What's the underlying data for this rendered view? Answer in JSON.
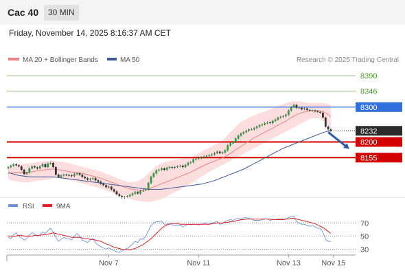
{
  "header": {
    "instrument": "Cac 40",
    "timeframe": "30 MIN",
    "datetime": "Friday, November 14, 2025 8:16:37 AM CET"
  },
  "legend": {
    "ma20": "MA 20 + Bollinger Bands",
    "ma50": "MA 50",
    "credit": "Research © 2025 Trading Central",
    "rsi": "RSI",
    "rsi9": "9MA"
  },
  "colors": {
    "candle": "#2e9e3e",
    "ma20": "#f08080",
    "band": "#fbd3d3",
    "ma50": "#3d5a98",
    "resistance": "#90c080",
    "pivot": "#2f6fde",
    "support": "#d40000",
    "arrow": "#2a5aa8",
    "rsi": "#6f8fe0",
    "rsi9": "#e02020"
  },
  "chart_data": [
    {
      "type": "line",
      "name": "price",
      "ylim": [
        8055,
        8410
      ],
      "x_ticks": [
        {
          "label": "Nov 7",
          "index": 38
        },
        {
          "label": "Nov 11",
          "index": 72
        },
        {
          "label": "Nov 13",
          "index": 106
        },
        {
          "label": "Nov 15",
          "index": 123
        }
      ],
      "levels": [
        {
          "label": "8390",
          "value": 8390,
          "style": "resistance"
        },
        {
          "label": "8346",
          "value": 8346,
          "style": "resistance"
        },
        {
          "label": "8300",
          "value": 8300,
          "style": "pivot"
        },
        {
          "label": "8232",
          "value": 8232,
          "style": "last"
        },
        {
          "label": "8200",
          "value": 8200,
          "style": "support"
        },
        {
          "label": "8155",
          "value": 8155,
          "style": "support"
        }
      ],
      "arrow": {
        "from_index": 121,
        "from": 8228,
        "to_index": 129,
        "to": 8180
      },
      "close": [
        8128,
        8132,
        8136,
        8133,
        8130,
        8120,
        8108,
        8112,
        8124,
        8130,
        8127,
        8124,
        8130,
        8136,
        8128,
        8138,
        8140,
        8128,
        8106,
        8100,
        8104,
        8106,
        8105,
        8104,
        8102,
        8108,
        8110,
        8106,
        8100,
        8096,
        8092,
        8094,
        8096,
        8090,
        8086,
        8080,
        8076,
        8070,
        8072,
        8064,
        8058,
        8050,
        8045,
        8040,
        8042,
        8044,
        8048,
        8052,
        8056,
        8052,
        8060,
        8062,
        8064,
        8082,
        8100,
        8110,
        8118,
        8120,
        8124,
        8120,
        8126,
        8128,
        8126,
        8128,
        8130,
        8132,
        8128,
        8134,
        8140,
        8142,
        8150,
        8152,
        8154,
        8156,
        8158,
        8160,
        8162,
        8164,
        8168,
        8172,
        8168,
        8170,
        8176,
        8190,
        8196,
        8200,
        8210,
        8218,
        8224,
        8228,
        8232,
        8236,
        8236,
        8240,
        8244,
        8248,
        8250,
        8254,
        8256,
        8254,
        8260,
        8264,
        8270,
        8272,
        8274,
        8278,
        8290,
        8300,
        8306,
        8298,
        8298,
        8294,
        8296,
        8292,
        8290,
        8290,
        8288,
        8286,
        8284,
        8270,
        8244,
        8236,
        8232
      ],
      "ma20": [
        8110,
        8111,
        8112,
        8113,
        8113,
        8113,
        8113,
        8113,
        8114,
        8115,
        8116,
        8117,
        8118,
        8119,
        8120,
        8121,
        8122,
        8122,
        8121,
        8120,
        8119,
        8118,
        8117,
        8115,
        8114,
        8113,
        8112,
        8111,
        8110,
        8108,
        8106,
        8104,
        8102,
        8100,
        8098,
        8096,
        8093,
        8090,
        8088,
        8085,
        8082,
        8079,
        8076,
        8073,
        8070,
        8068,
        8066,
        8064,
        8063,
        8062,
        8062,
        8062,
        8063,
        8065,
        8068,
        8071,
        8074,
        8077,
        8080,
        8083,
        8086,
        8089,
        8092,
        8095,
        8098,
        8101,
        8104,
        8107,
        8110,
        8113,
        8117,
        8121,
        8125,
        8129,
        8133,
        8136,
        8139,
        8142,
        8145,
        8148,
        8151,
        8154,
        8158,
        8162,
        8167,
        8172,
        8177,
        8182,
        8187,
        8192,
        8197,
        8202,
        8207,
        8212,
        8216,
        8220,
        8224,
        8228,
        8232,
        8236,
        8240,
        8244,
        8248,
        8252,
        8256,
        8260,
        8265,
        8270,
        8274,
        8278,
        8281,
        8284,
        8286,
        8288,
        8289,
        8290,
        8290,
        8290,
        8289,
        8287,
        8283,
        8278,
        8272
      ],
      "band_upper": [
        8128,
        8130,
        8132,
        8134,
        8135,
        8136,
        8137,
        8138,
        8139,
        8140,
        8141,
        8142,
        8143,
        8144,
        8145,
        8146,
        8146,
        8146,
        8145,
        8144,
        8143,
        8142,
        8141,
        8139,
        8137,
        8135,
        8133,
        8131,
        8129,
        8127,
        8125,
        8123,
        8121,
        8119,
        8117,
        8115,
        8112,
        8109,
        8106,
        8103,
        8100,
        8097,
        8094,
        8091,
        8088,
        8086,
        8085,
        8085,
        8086,
        8088,
        8092,
        8097,
        8103,
        8110,
        8117,
        8124,
        8130,
        8135,
        8139,
        8142,
        8144,
        8146,
        8148,
        8149,
        8150,
        8151,
        8152,
        8153,
        8155,
        8157,
        8160,
        8164,
        8168,
        8172,
        8176,
        8180,
        8184,
        8188,
        8192,
        8196,
        8200,
        8205,
        8212,
        8220,
        8228,
        8236,
        8244,
        8251,
        8257,
        8262,
        8266,
        8270,
        8273,
        8276,
        8279,
        8282,
        8285,
        8288,
        8291,
        8294,
        8297,
        8300,
        8303,
        8306,
        8309,
        8312,
        8314,
        8316,
        8317,
        8317,
        8316,
        8315,
        8314,
        8313,
        8312,
        8312,
        8312,
        8312,
        8312,
        8312,
        8311,
        8309,
        8306
      ],
      "band_lower": [
        8092,
        8090,
        8088,
        8087,
        8086,
        8085,
        8084,
        8084,
        8085,
        8086,
        8087,
        8088,
        8089,
        8090,
        8091,
        8092,
        8094,
        8096,
        8097,
        8096,
        8095,
        8094,
        8093,
        8091,
        8089,
        8087,
        8085,
        8083,
        8081,
        8079,
        8077,
        8075,
        8073,
        8071,
        8069,
        8067,
        8064,
        8061,
        8058,
        8055,
        8052,
        8049,
        8046,
        8043,
        8040,
        8038,
        8036,
        8034,
        8032,
        8031,
        8030,
        8029,
        8028,
        8028,
        8029,
        8030,
        8032,
        8034,
        8037,
        8040,
        8044,
        8048,
        8052,
        8056,
        8060,
        8064,
        8068,
        8072,
        8076,
        8080,
        8085,
        8090,
        8095,
        8100,
        8105,
        8110,
        8114,
        8118,
        8122,
        8126,
        8130,
        8134,
        8138,
        8142,
        8146,
        8150,
        8154,
        8158,
        8162,
        8166,
        8170,
        8174,
        8178,
        8182,
        8186,
        8190,
        8194,
        8198,
        8202,
        8206,
        8210,
        8214,
        8218,
        8222,
        8226,
        8230,
        8234,
        8238,
        8242,
        8246,
        8250,
        8254,
        8258,
        8262,
        8266,
        8268,
        8268,
        8268,
        8266,
        8262,
        8255,
        8247,
        8238
      ],
      "ma50": [
        8112,
        8110,
        8108,
        8106,
        8104,
        8103,
        8102,
        8101,
        8100,
        8100,
        8100,
        8100,
        8100,
        8100,
        8100,
        8100,
        8100,
        8100,
        8099,
        8098,
        8097,
        8096,
        8095,
        8094,
        8093,
        8092,
        8091,
        8090,
        8089,
        8088,
        8087,
        8086,
        8085,
        8084,
        8083,
        8082,
        8081,
        8080,
        8079,
        8078,
        8077,
        8076,
        8075,
        8074,
        8073,
        8072,
        8071,
        8070,
        8069,
        8068,
        8067,
        8066,
        8065,
        8064,
        8064,
        8064,
        8064,
        8064,
        8064,
        8065,
        8066,
        8067,
        8068,
        8069,
        8070,
        8071,
        8072,
        8073,
        8074,
        8075,
        8076,
        8077,
        8078,
        8079,
        8081,
        8083,
        8085,
        8087,
        8089,
        8092,
        8095,
        8098,
        8101,
        8104,
        8107,
        8110,
        8113,
        8116,
        8119,
        8122,
        8126,
        8130,
        8134,
        8138,
        8142,
        8146,
        8150,
        8154,
        8158,
        8162,
        8166,
        8170,
        8174,
        8178,
        8182,
        8185,
        8188,
        8191,
        8194,
        8197,
        8200,
        8203,
        8206,
        8209,
        8212,
        8215,
        8218,
        8221,
        8224,
        8227,
        8229,
        8231,
        8232
      ]
    },
    {
      "type": "line",
      "name": "rsi",
      "ylim": [
        20,
        85
      ],
      "y_ticks": [
        70,
        50,
        30
      ],
      "series": [
        {
          "name": "RSI",
          "values": [
            48,
            46,
            52,
            55,
            50,
            47,
            44,
            46,
            52,
            55,
            53,
            50,
            52,
            56,
            54,
            58,
            62,
            56,
            48,
            42,
            45,
            48,
            46,
            46,
            44,
            50,
            54,
            50,
            44,
            42,
            40,
            44,
            46,
            40,
            36,
            34,
            32,
            30,
            32,
            30,
            28,
            26,
            25,
            27,
            30,
            31,
            34,
            38,
            42,
            40,
            46,
            45,
            50,
            58,
            66,
            70,
            72,
            72,
            73,
            68,
            68,
            70,
            67,
            66,
            66,
            67,
            64,
            66,
            68,
            67,
            68,
            68,
            67,
            68,
            69,
            70,
            70,
            70,
            71,
            72,
            68,
            69,
            72,
            74,
            75,
            74,
            76,
            77,
            76,
            78,
            78,
            77,
            76,
            74,
            74,
            74,
            75,
            76,
            76,
            74,
            75,
            75,
            76,
            76,
            76,
            76,
            78,
            80,
            80,
            72,
            70,
            68,
            68,
            66,
            65,
            66,
            64,
            62,
            62,
            56,
            45,
            42,
            42
          ]
        },
        {
          "name": "9MA",
          "values": [
            50,
            50,
            50,
            50,
            51,
            51,
            50,
            50,
            50,
            50,
            51,
            51,
            51,
            52,
            52,
            53,
            54,
            55,
            54,
            53,
            52,
            51,
            50,
            49,
            48,
            48,
            48,
            48,
            47,
            46,
            46,
            45,
            45,
            44,
            43,
            42,
            40,
            38,
            37,
            35,
            33,
            32,
            31,
            30,
            29,
            29,
            29,
            30,
            31,
            33,
            35,
            37,
            40,
            43,
            46,
            50,
            54,
            58,
            62,
            65,
            67,
            68,
            69,
            69,
            69,
            68,
            68,
            68,
            68,
            68,
            68,
            68,
            68,
            68,
            68,
            68,
            68,
            69,
            69,
            70,
            70,
            70,
            71,
            71,
            72,
            72,
            73,
            74,
            75,
            75,
            76,
            76,
            76,
            76,
            76,
            76,
            76,
            76,
            76,
            76,
            75,
            75,
            75,
            75,
            75,
            76,
            76,
            77,
            77,
            76,
            75,
            74,
            73,
            72,
            71,
            70,
            69,
            67,
            65,
            63,
            60,
            57,
            54
          ]
        }
      ]
    }
  ]
}
